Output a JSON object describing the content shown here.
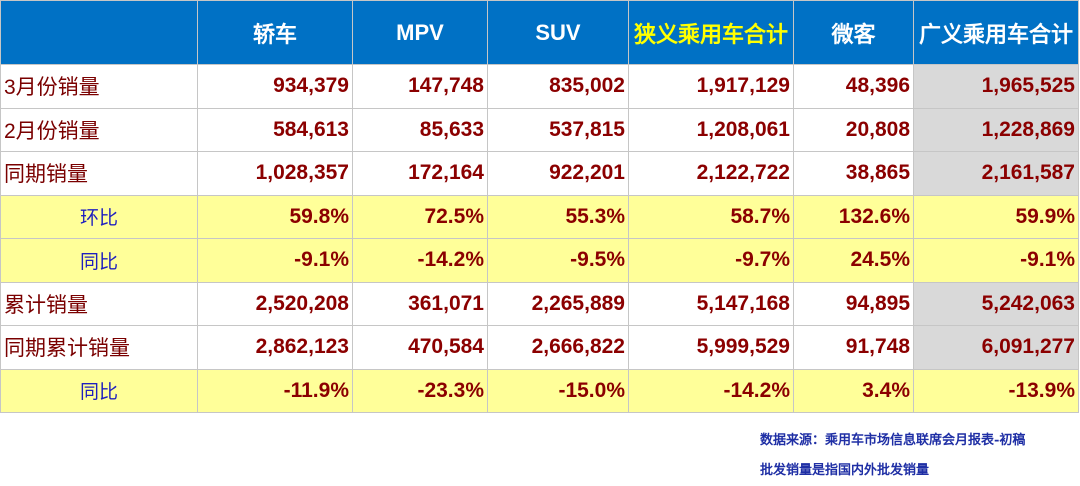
{
  "chart_data": {
    "type": "table",
    "columns": [
      "",
      "轿车",
      "MPV",
      "SUV",
      "狭义乘用车合计",
      "微客",
      "广义乘用车合计"
    ],
    "rows": [
      {
        "label": "3月份销量",
        "kind": "normal",
        "values": [
          "934,379",
          "147,748",
          "835,002",
          "1,917,129",
          "48,396",
          "1,965,525"
        ]
      },
      {
        "label": "2月份销量",
        "kind": "normal",
        "values": [
          "584,613",
          "85,633",
          "537,815",
          "1,208,061",
          "20,808",
          "1,228,869"
        ]
      },
      {
        "label": "同期销量",
        "kind": "normal",
        "values": [
          "1,028,357",
          "172,164",
          "922,201",
          "2,122,722",
          "38,865",
          "2,161,587"
        ]
      },
      {
        "label": "环比",
        "kind": "ratio",
        "values": [
          "59.8%",
          "72.5%",
          "55.3%",
          "58.7%",
          "132.6%",
          "59.9%"
        ]
      },
      {
        "label": "同比",
        "kind": "ratio",
        "values": [
          "-9.1%",
          "-14.2%",
          "-9.5%",
          "-9.7%",
          "24.5%",
          "-9.1%"
        ]
      },
      {
        "label": "累计销量",
        "kind": "normal",
        "values": [
          "2,520,208",
          "361,071",
          "2,265,889",
          "5,147,168",
          "94,895",
          "5,242,063"
        ]
      },
      {
        "label": "同期累计销量",
        "kind": "normal",
        "values": [
          "2,862,123",
          "470,584",
          "2,666,822",
          "5,999,529",
          "91,748",
          "6,091,277"
        ]
      },
      {
        "label": "同比",
        "kind": "ratio",
        "values": [
          "-11.9%",
          "-23.3%",
          "-15.0%",
          "-14.2%",
          "3.4%",
          "-13.9%"
        ]
      }
    ],
    "colors": {
      "header_bg": "#0071c5",
      "header_text": "#ffffff",
      "header_highlight": "#ffff00",
      "ratio_row_bg": "#ffff99",
      "total_col_bg": "#d9d9d9",
      "value_text": "#8b0000",
      "ratio_label_text": "#1f1fbf"
    }
  },
  "notes": {
    "source": "数据来源：乘用车市场信息联席会月报表-初稿",
    "definition": "批发销量是指国内外批发销量"
  }
}
